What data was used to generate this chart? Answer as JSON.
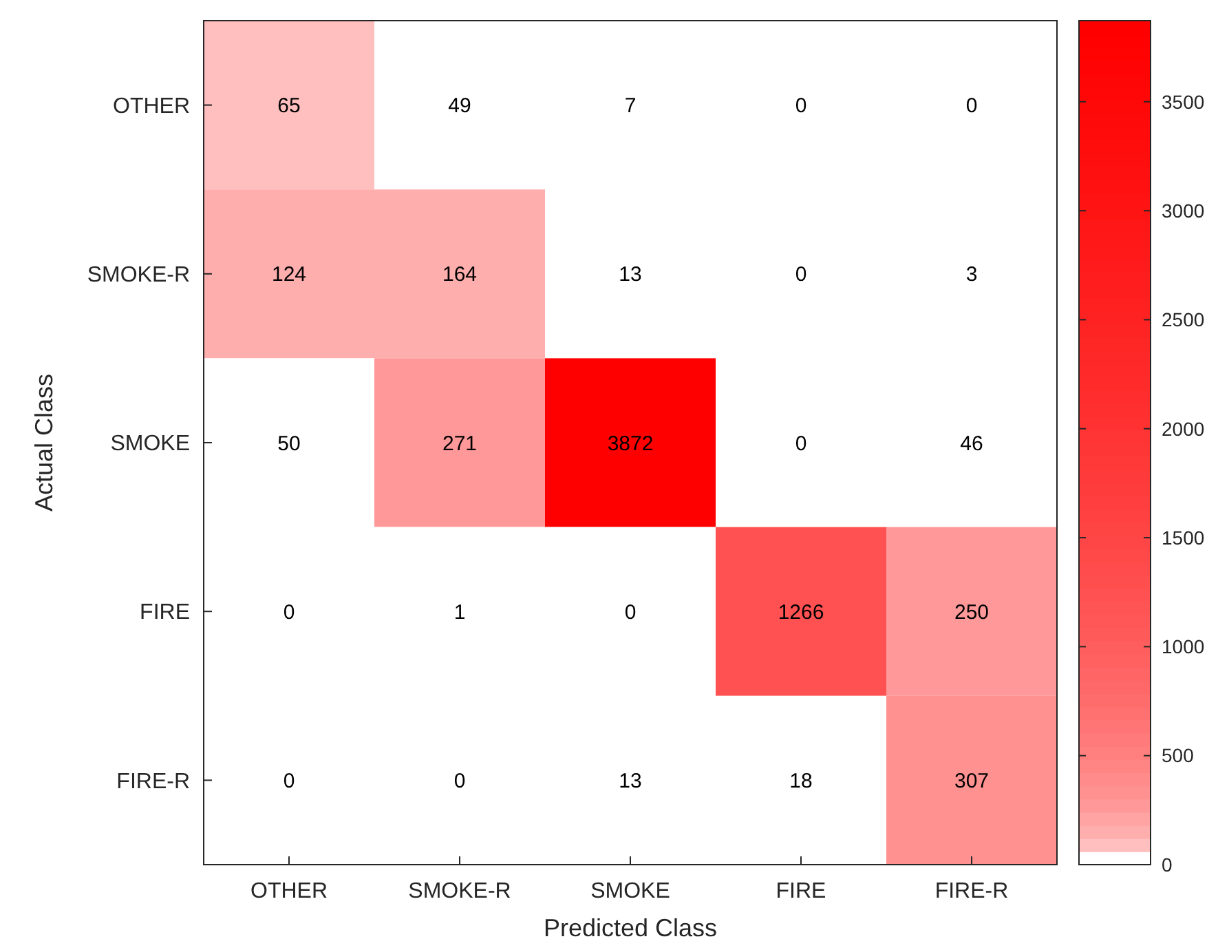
{
  "chart_data": {
    "type": "heatmap",
    "xlabel": "Predicted Class",
    "ylabel": "Actual Class",
    "categories": [
      "OTHER",
      "SMOKE-R",
      "SMOKE",
      "FIRE",
      "FIRE-R"
    ],
    "y_categories": [
      "OTHER",
      "SMOKE-R",
      "SMOKE",
      "FIRE",
      "FIRE-R"
    ],
    "cells": [
      [
        65,
        49,
        7,
        0,
        0
      ],
      [
        124,
        164,
        13,
        0,
        3
      ],
      [
        50,
        271,
        3872,
        0,
        46
      ],
      [
        0,
        1,
        0,
        1266,
        250
      ],
      [
        0,
        0,
        13,
        18,
        307
      ]
    ],
    "clim": [
      0,
      3872
    ],
    "cticks": [
      0,
      500,
      1000,
      1500,
      2000,
      2500,
      3000,
      3500
    ],
    "data_labels": true
  }
}
